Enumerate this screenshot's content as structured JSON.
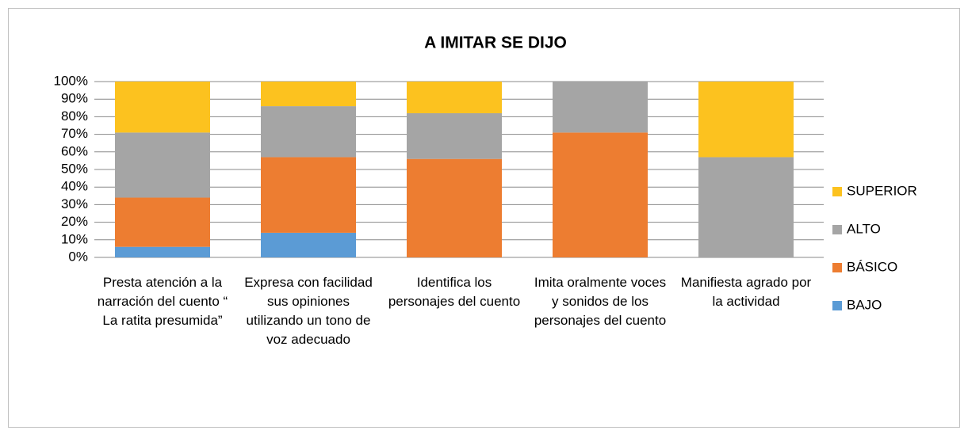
{
  "chart_data": {
    "type": "stacked_bar",
    "title": "A IMITAR SE DIJO",
    "categories": [
      "Presta atención a la narración del cuento “ La ratita presumida”",
      "Expresa con facilidad sus opiniones utilizando un tono de voz adecuado",
      "Identifica los personajes del cuento",
      "Imita oralmente voces y sonidos de los personajes del cuento",
      "Manifiesta agrado por la actividad"
    ],
    "series": [
      {
        "name": "BAJO",
        "color": "#5b9bd5",
        "values": [
          6,
          14,
          0,
          0,
          0
        ]
      },
      {
        "name": "BÁSICO",
        "color": "#ed7d31",
        "values": [
          28,
          43,
          56,
          71,
          0
        ]
      },
      {
        "name": "ALTO",
        "color": "#a5a5a5",
        "values": [
          37,
          29,
          26,
          29,
          57
        ]
      },
      {
        "name": "SUPERIOR",
        "color": "#fcc21f",
        "values": [
          29,
          14,
          18,
          0,
          43
        ]
      }
    ],
    "ylim": [
      0,
      100
    ],
    "yticks": [
      {
        "value": 0,
        "label": "0%"
      },
      {
        "value": 10,
        "label": "10%"
      },
      {
        "value": 20,
        "label": "20%"
      },
      {
        "value": 30,
        "label": "30%"
      },
      {
        "value": 40,
        "label": "40%"
      },
      {
        "value": 50,
        "label": "50%"
      },
      {
        "value": 60,
        "label": "60%"
      },
      {
        "value": 70,
        "label": "70%"
      },
      {
        "value": 80,
        "label": "80%"
      },
      {
        "value": 90,
        "label": "90%"
      },
      {
        "value": 100,
        "label": "100%"
      }
    ],
    "grid": true,
    "legend": "right"
  }
}
